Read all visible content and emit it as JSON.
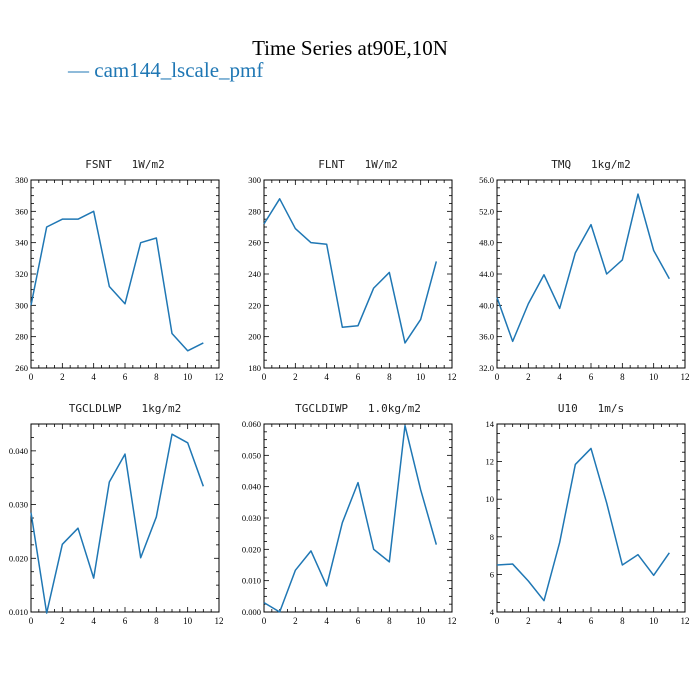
{
  "figure": {
    "title": "Time Series at90E,10N",
    "legend_label": "cam144_lscale_pmf",
    "series_color": "#1f77b4"
  },
  "chart_data": [
    {
      "type": "line",
      "title": "FSNT  1W/m2",
      "x": [
        0,
        1,
        2,
        3,
        4,
        5,
        6,
        7,
        8,
        9,
        10,
        11
      ],
      "series": [
        {
          "name": "cam144_lscale_pmf",
          "values": [
            300,
            350,
            355,
            355,
            360,
            312,
            301,
            340,
            343,
            282,
            271,
            276
          ]
        }
      ],
      "xlim": [
        0,
        12
      ],
      "ylim": [
        260,
        380
      ],
      "xticks": [
        0,
        2,
        4,
        6,
        8,
        10,
        12
      ],
      "yticks": [
        260,
        280,
        300,
        320,
        340,
        360,
        380
      ],
      "ytick_labels": [
        "260",
        "280",
        "300",
        "320",
        "340",
        "360",
        "380"
      ]
    },
    {
      "type": "line",
      "title": "FLNT  1W/m2",
      "x": [
        0,
        1,
        2,
        3,
        4,
        5,
        6,
        7,
        8,
        9,
        10,
        11
      ],
      "series": [
        {
          "name": "cam144_lscale_pmf",
          "values": [
            272,
            288,
            269,
            260,
            259,
            206,
            207,
            231,
            241,
            196,
            211,
            248
          ]
        }
      ],
      "xlim": [
        0,
        12
      ],
      "ylim": [
        180,
        300
      ],
      "xticks": [
        0,
        2,
        4,
        6,
        8,
        10,
        12
      ],
      "yticks": [
        180,
        200,
        220,
        240,
        260,
        280,
        300
      ],
      "ytick_labels": [
        "180",
        "200",
        "220",
        "240",
        "260",
        "280",
        "300"
      ]
    },
    {
      "type": "line",
      "title": "TMQ  1kg/m2",
      "x": [
        0,
        1,
        2,
        3,
        4,
        5,
        6,
        7,
        8,
        9,
        10,
        11
      ],
      "series": [
        {
          "name": "cam144_lscale_pmf",
          "values": [
            41.0,
            35.4,
            40.2,
            43.9,
            39.6,
            46.7,
            50.3,
            44.0,
            45.8,
            54.2,
            47.0,
            43.4
          ]
        }
      ],
      "xlim": [
        0,
        12
      ],
      "ylim": [
        32,
        56
      ],
      "xticks": [
        0,
        2,
        4,
        6,
        8,
        10,
        12
      ],
      "yticks": [
        32,
        36,
        40,
        44,
        48,
        52,
        56
      ],
      "ytick_labels": [
        "32.0",
        "36.0",
        "40.0",
        "44.0",
        "48.0",
        "52.0",
        "56.0"
      ]
    },
    {
      "type": "line",
      "title": "TGCLDLWP  1kg/m2",
      "x": [
        0,
        1,
        2,
        3,
        4,
        5,
        6,
        7,
        8,
        9,
        10,
        11
      ],
      "series": [
        {
          "name": "cam144_lscale_pmf",
          "values": [
            0.0285,
            0.0098,
            0.0226,
            0.0256,
            0.0163,
            0.0342,
            0.0394,
            0.0201,
            0.0277,
            0.0431,
            0.0415,
            0.0334
          ]
        }
      ],
      "xlim": [
        0,
        12
      ],
      "ylim": [
        0.01,
        0.045
      ],
      "xticks": [
        0,
        2,
        4,
        6,
        8,
        10,
        12
      ],
      "yticks": [
        0.01,
        0.02,
        0.03,
        0.04
      ],
      "ytick_labels": [
        "0.010",
        "0.020",
        "0.030",
        "0.040"
      ]
    },
    {
      "type": "line",
      "title": "TGCLDIWP  1.0kg/m2",
      "x": [
        0,
        1,
        2,
        3,
        4,
        5,
        6,
        7,
        8,
        9,
        10,
        11
      ],
      "series": [
        {
          "name": "cam144_lscale_pmf",
          "values": [
            0.003,
            0.0,
            0.0133,
            0.0195,
            0.0083,
            0.0285,
            0.0413,
            0.02,
            0.016,
            0.0595,
            0.039,
            0.0215
          ]
        }
      ],
      "xlim": [
        0,
        12
      ],
      "ylim": [
        0.0,
        0.06
      ],
      "xticks": [
        0,
        2,
        4,
        6,
        8,
        10,
        12
      ],
      "yticks": [
        0.0,
        0.01,
        0.02,
        0.03,
        0.04,
        0.05,
        0.06
      ],
      "ytick_labels": [
        "0.000",
        "0.010",
        "0.020",
        "0.030",
        "0.040",
        "0.050",
        "0.060"
      ]
    },
    {
      "type": "line",
      "title": "U10  1m/s",
      "x": [
        0,
        1,
        2,
        3,
        4,
        5,
        6,
        7,
        8,
        9,
        10,
        11
      ],
      "series": [
        {
          "name": "cam144_lscale_pmf",
          "values": [
            6.5,
            6.55,
            5.65,
            4.6,
            7.7,
            11.85,
            12.7,
            9.8,
            6.5,
            7.05,
            5.95,
            7.15
          ]
        }
      ],
      "xlim": [
        0,
        12
      ],
      "ylim": [
        4,
        14
      ],
      "xticks": [
        0,
        2,
        4,
        6,
        8,
        10,
        12
      ],
      "yticks": [
        4,
        6,
        8,
        10,
        12,
        14
      ],
      "ytick_labels": [
        "4",
        "6",
        "8",
        "10",
        "12",
        "14"
      ]
    }
  ]
}
